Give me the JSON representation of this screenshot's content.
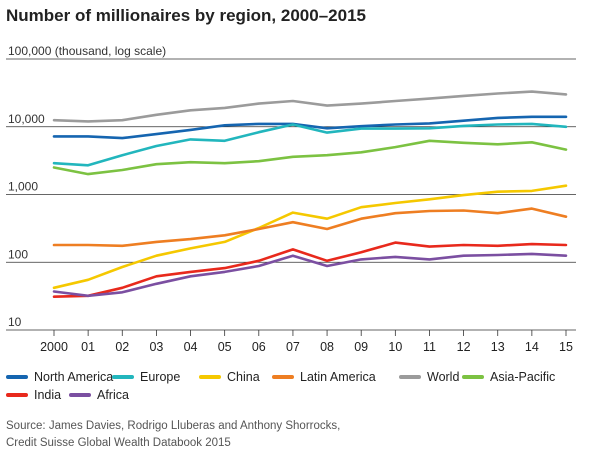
{
  "title": "Number of millionaires by region, 2000–2015",
  "source": [
    "Source: James Davies, Rodrigo Lluberas and Anthony Shorrocks,",
    "Credit Suisse Global Wealth Databook 2015"
  ],
  "chart_data": {
    "type": "line",
    "title": "Number of millionaires by region, 2000–2015",
    "ylabel": "100,000 (thousand, log scale)",
    "yscale": "log",
    "ylim": [
      10,
      100000
    ],
    "grid": "horizontal",
    "legend_position": "bottom",
    "x": [
      "2000",
      "01",
      "02",
      "03",
      "04",
      "05",
      "06",
      "07",
      "08",
      "09",
      "10",
      "11",
      "12",
      "13",
      "14",
      "15"
    ],
    "yticks": [
      {
        "value": 10,
        "label": "10"
      },
      {
        "value": 100,
        "label": "100"
      },
      {
        "value": 1000,
        "label": "1,000"
      },
      {
        "value": 10000,
        "label": "10,000"
      },
      {
        "value": 100000,
        "label": "100,000 (thousand, log scale)"
      }
    ],
    "series": [
      {
        "name": "North America",
        "color": "#1565b0",
        "values": [
          7200,
          7200,
          6800,
          7800,
          9000,
          10500,
          11000,
          11000,
          9500,
          10200,
          10800,
          11200,
          12300,
          13500,
          14000,
          14000
        ]
      },
      {
        "name": "Europe",
        "color": "#22b6bd",
        "values": [
          2900,
          2700,
          3800,
          5200,
          6500,
          6200,
          8300,
          10800,
          8200,
          9400,
          9400,
          9500,
          10300,
          10800,
          11000,
          10000
        ]
      },
      {
        "name": "China",
        "color": "#f5c800",
        "values": [
          42,
          55,
          85,
          125,
          160,
          200,
          320,
          540,
          440,
          650,
          750,
          850,
          980,
          1100,
          1130,
          1350
        ]
      },
      {
        "name": "Latin America",
        "color": "#ee7e22",
        "values": [
          180,
          180,
          175,
          200,
          220,
          250,
          310,
          390,
          310,
          440,
          530,
          570,
          580,
          530,
          620,
          470
        ]
      },
      {
        "name": "World",
        "color": "#9b9b9b",
        "values": [
          12500,
          12000,
          12500,
          15000,
          17500,
          19000,
          22000,
          24000,
          20500,
          22000,
          24000,
          26000,
          28500,
          31000,
          33000,
          30000
        ]
      },
      {
        "name": "Asia-Pacific",
        "color": "#7cc242",
        "values": [
          2500,
          2000,
          2300,
          2800,
          3000,
          2900,
          3100,
          3600,
          3800,
          4200,
          5000,
          6200,
          5800,
          5500,
          5900,
          4600
        ]
      },
      {
        "name": "India",
        "color": "#e8291c",
        "values": [
          31,
          32,
          42,
          62,
          72,
          82,
          105,
          155,
          105,
          140,
          195,
          170,
          180,
          175,
          185,
          180
        ]
      },
      {
        "name": "Africa",
        "color": "#7b4fa1",
        "values": [
          37,
          32,
          36,
          48,
          62,
          72,
          88,
          125,
          88,
          110,
          120,
          110,
          125,
          128,
          133,
          125
        ]
      }
    ]
  }
}
